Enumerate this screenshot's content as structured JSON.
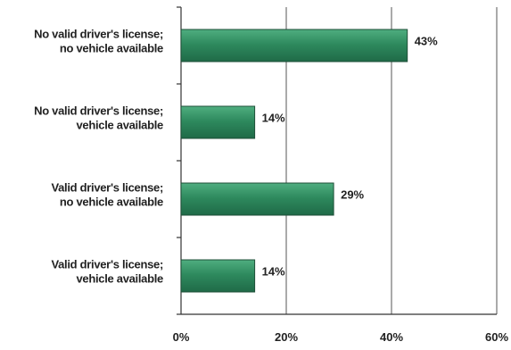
{
  "chart_data": {
    "type": "bar",
    "orientation": "horizontal",
    "categories": [
      [
        "No valid driver's license;",
        "no vehicle available"
      ],
      [
        "No valid driver's license;",
        "vehicle available"
      ],
      [
        "Valid driver's license;",
        "no vehicle available"
      ],
      [
        "Valid driver's license;",
        "vehicle available"
      ]
    ],
    "values": [
      43,
      14,
      29,
      14
    ],
    "data_labels": [
      "43%",
      "14%",
      "29%",
      "14%"
    ],
    "xlim": [
      0,
      60
    ],
    "x_ticks": [
      0,
      20,
      40,
      60
    ],
    "x_tick_labels": [
      "0%",
      "20%",
      "40%",
      "60%"
    ],
    "grid": "vertical",
    "bar_color": "#2e8a5e",
    "bar_highlight": "#4fae80",
    "bar_edge": "#1f4f38"
  }
}
